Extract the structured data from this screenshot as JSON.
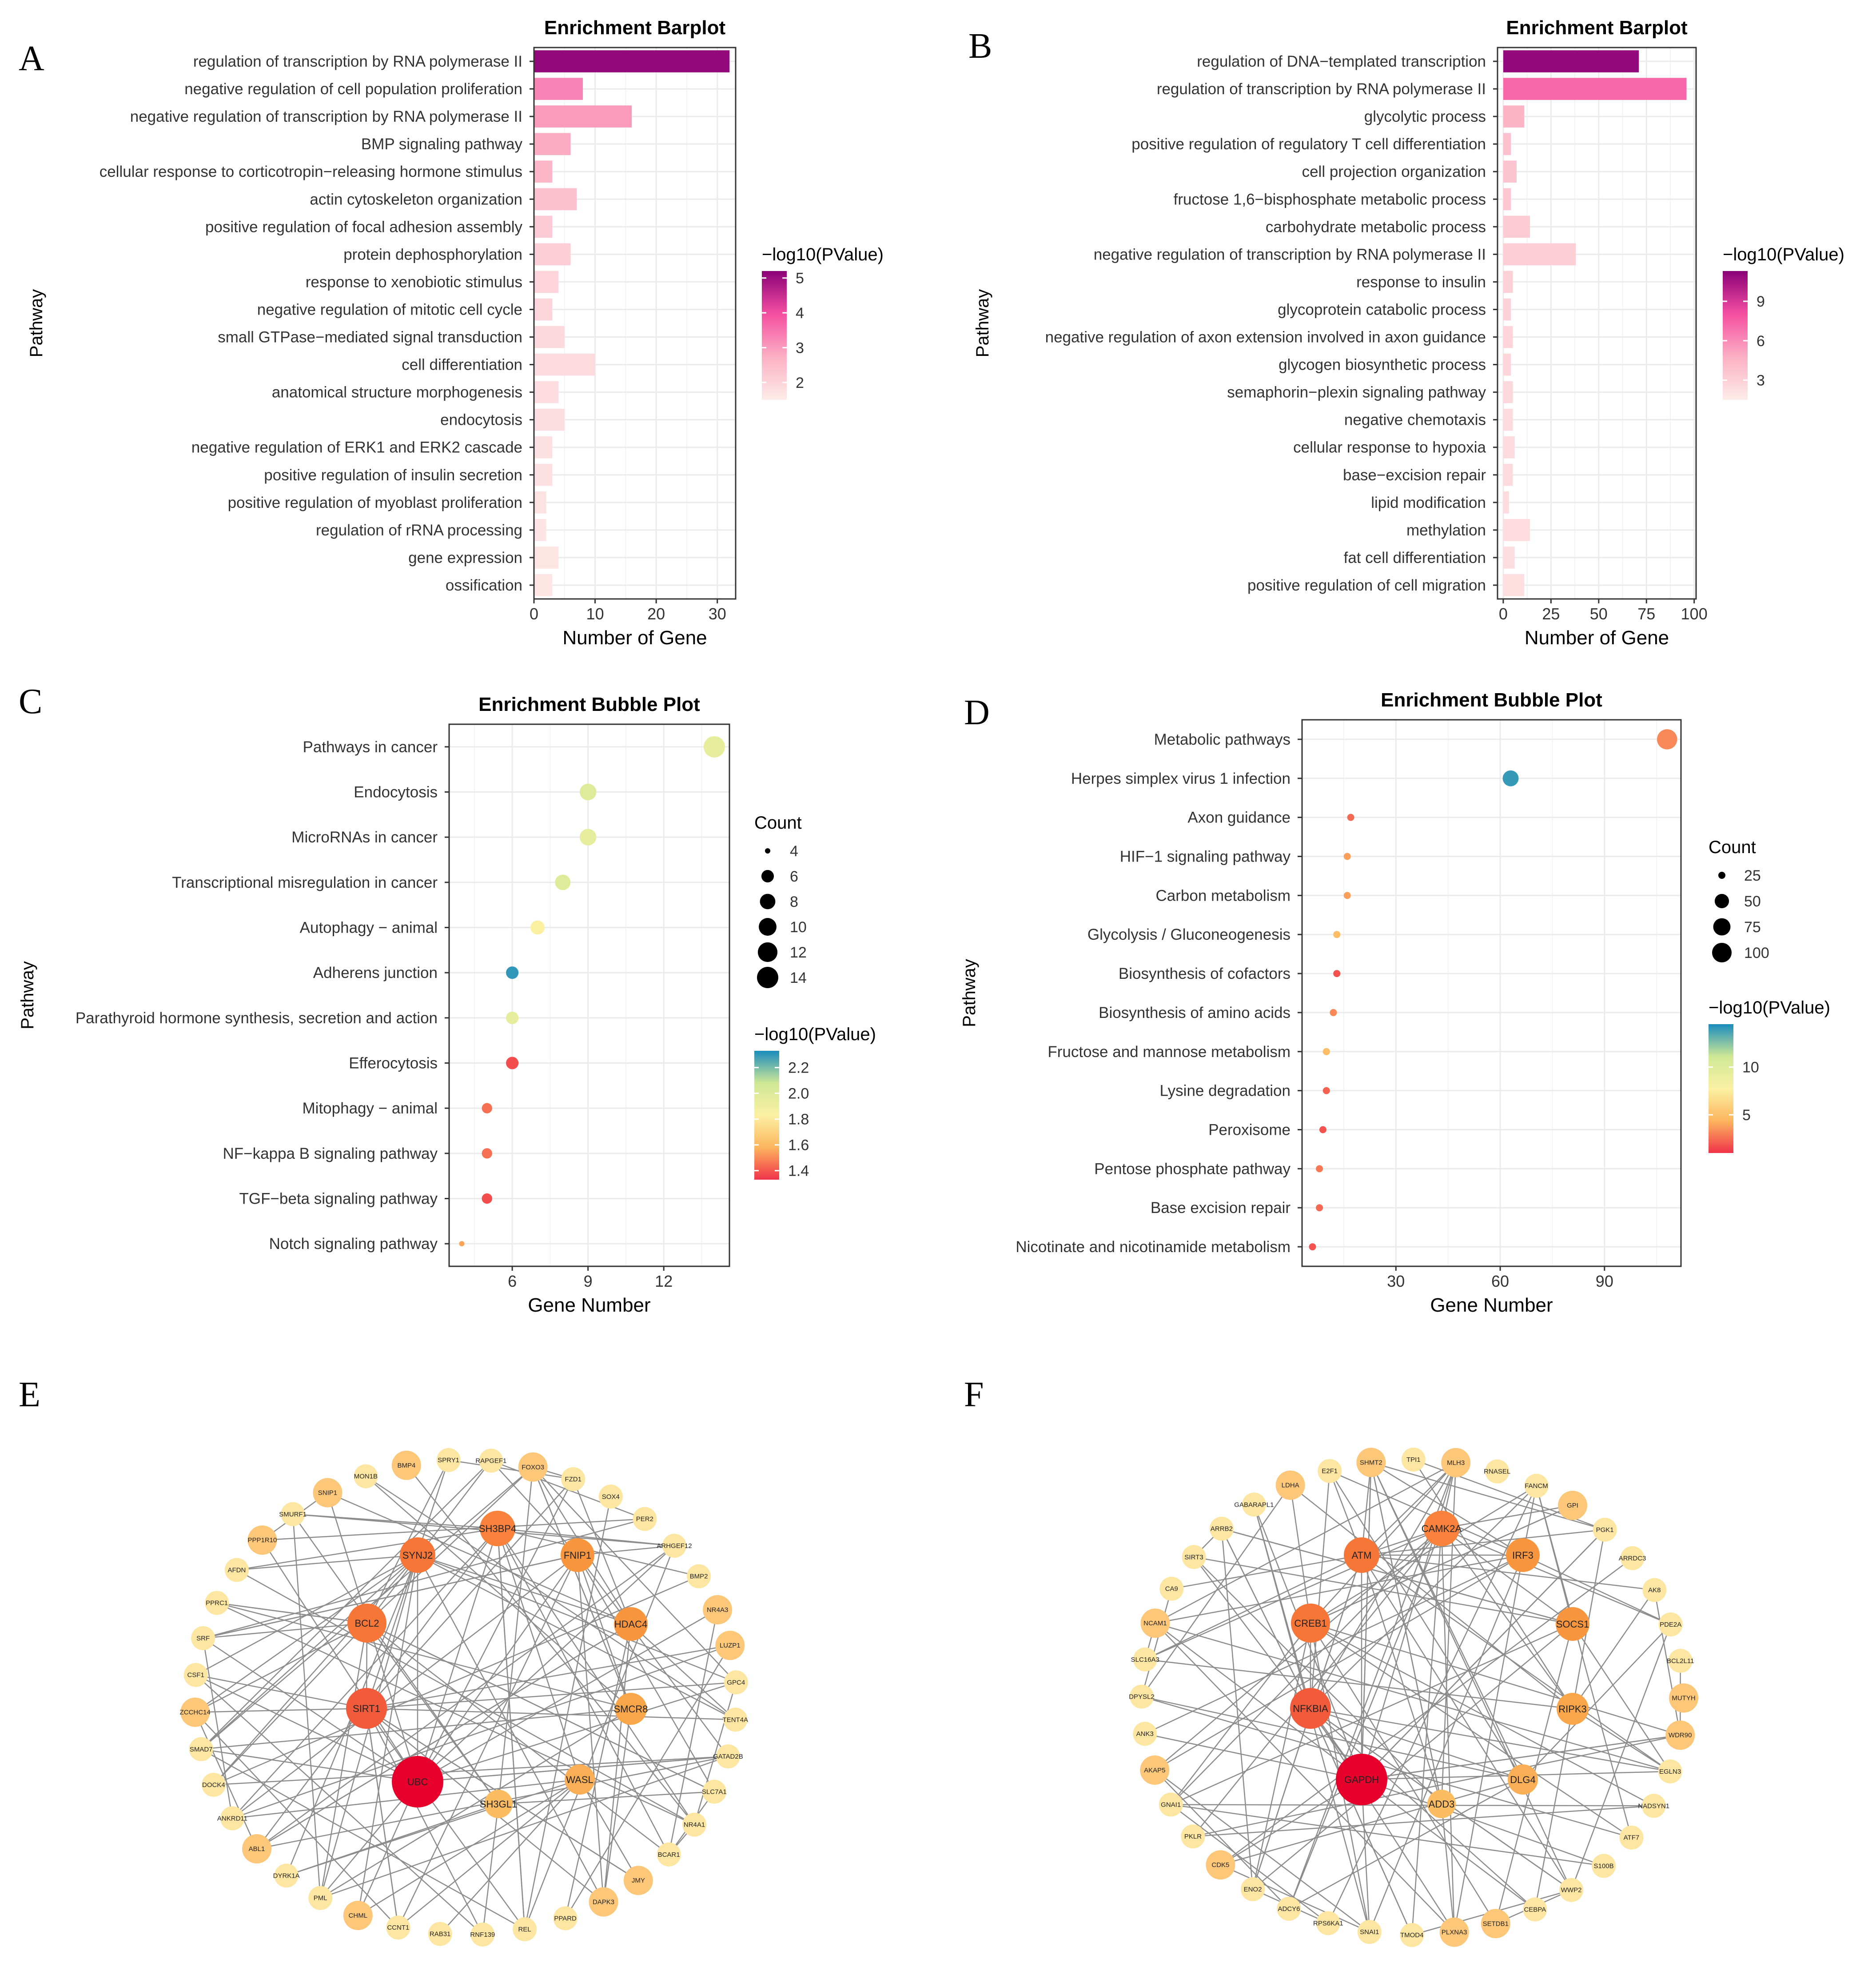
{
  "panels": {
    "A": {
      "letter": "A",
      "chart_data": {
        "type": "bar",
        "orientation": "horizontal",
        "title": "Enrichment Barplot",
        "xlabel": "Number of Gene",
        "ylabel": "Pathway",
        "xlim": [
          0,
          33
        ],
        "xticks": [
          0,
          10,
          20,
          30
        ],
        "colorbar": {
          "title": "−log10(PValue)",
          "range": [
            1.5,
            5.2
          ],
          "ticks": [
            2,
            3,
            4,
            5
          ],
          "colors": [
            "#fdece8",
            "#fbb0c4",
            "#f54fa1",
            "#8a0277"
          ]
        },
        "categories": [
          "regulation of transcription by RNA polymerase II",
          "negative regulation of cell population proliferation",
          "negative regulation of transcription by RNA polymerase II",
          "BMP signaling pathway",
          "cellular response to corticotropin−releasing hormone stimulus",
          "actin cytoskeleton organization",
          "positive regulation of focal adhesion assembly",
          "protein dephosphorylation",
          "response to xenobiotic stimulus",
          "negative regulation of mitotic cell cycle",
          "small GTPase−mediated signal transduction",
          "cell differentiation",
          "anatomical structure morphogenesis",
          "endocytosis",
          "negative regulation of ERK1 and ERK2 cascade",
          "positive regulation of insulin secretion",
          "positive regulation of myoblast proliferation",
          "regulation of rRNA processing",
          "gene expression",
          "ossification"
        ],
        "values": [
          32,
          8,
          16,
          6,
          3,
          7,
          3,
          6,
          4,
          3,
          5,
          10,
          4,
          5,
          3,
          3,
          2,
          2,
          4,
          3
        ],
        "color_values": [
          5.1,
          3.3,
          3.0,
          2.8,
          2.6,
          2.4,
          2.2,
          2.1,
          2.0,
          1.95,
          1.9,
          1.85,
          1.8,
          1.78,
          1.75,
          1.72,
          1.7,
          1.68,
          1.65,
          1.62
        ]
      }
    },
    "B": {
      "letter": "B",
      "chart_data": {
        "type": "bar",
        "orientation": "horizontal",
        "title": "Enrichment Barplot",
        "xlabel": "Number of Gene",
        "ylabel": "Pathway",
        "xlim": [
          -3,
          101
        ],
        "xticks": [
          0,
          25,
          50,
          75,
          100
        ],
        "colorbar": {
          "title": "−log10(PValue)",
          "range": [
            1.5,
            11.3
          ],
          "ticks": [
            3,
            6,
            9
          ],
          "colors": [
            "#fdece8",
            "#fbb0c4",
            "#f54fa1",
            "#8a0277"
          ]
        },
        "categories": [
          "regulation of DNA−templated transcription",
          "regulation of transcription by RNA polymerase II",
          "glycolytic process",
          "positive regulation of regulatory T cell differentiation",
          "cell projection organization",
          "fructose 1,6−bisphosphate metabolic process",
          "carbohydrate metabolic process",
          "negative regulation of transcription by RNA polymerase II",
          "response to insulin",
          "glycoprotein catabolic process",
          "negative regulation of axon extension involved in axon guidance",
          "glycogen biosynthetic process",
          "semaphorin−plexin signaling pathway",
          "negative chemotaxis",
          "cellular response to hypoxia",
          "base−excision repair",
          "lipid modification",
          "methylation",
          "fat cell differentiation",
          "positive regulation of cell migration"
        ],
        "values": [
          71,
          96,
          11,
          4,
          7,
          4,
          14,
          38,
          5,
          4,
          5,
          4,
          5,
          5,
          6,
          5,
          3,
          14,
          6,
          11
        ],
        "color_values": [
          11.0,
          7.2,
          4.5,
          3.9,
          3.7,
          3.5,
          3.3,
          3.1,
          3.0,
          2.9,
          2.8,
          2.7,
          2.6,
          2.5,
          2.45,
          2.4,
          2.35,
          2.3,
          2.25,
          2.2
        ]
      }
    },
    "C": {
      "letter": "C",
      "chart_data": {
        "type": "scatter",
        "title": "Enrichment Bubble Plot",
        "xlabel": "Gene Number",
        "ylabel": "Pathway",
        "xlim": [
          3.5,
          14.6
        ],
        "xticks": [
          6,
          9,
          12
        ],
        "categories": [
          "Pathways in cancer",
          "Endocytosis",
          "MicroRNAs in cancer",
          "Transcriptional misregulation in cancer",
          "Autophagy − animal",
          "Adherens junction",
          "Parathyroid hormone synthesis, secretion and action",
          "Efferocytosis",
          "Mitophagy − animal",
          "NF−kappa B signaling pathway",
          "TGF−beta signaling pathway",
          "Notch signaling pathway"
        ],
        "x": [
          14,
          9,
          9,
          8,
          7,
          6,
          6,
          6,
          5,
          5,
          5,
          4
        ],
        "color_values": [
          1.95,
          2.0,
          1.95,
          2.0,
          1.82,
          2.3,
          1.95,
          1.38,
          1.45,
          1.45,
          1.38,
          1.55
        ],
        "size_legend": {
          "title": "Count",
          "values": [
            4,
            6,
            8,
            10,
            12,
            14
          ]
        },
        "colorbar": {
          "title": "−log10(PValue)",
          "range": [
            1.33,
            2.33
          ],
          "ticks": [
            1.4,
            1.6,
            1.8,
            2.0,
            2.2
          ],
          "tick_labels": [
            "1.4",
            "1.6",
            "1.8",
            "2.0",
            "2.2"
          ],
          "colors": [
            "#f0334a",
            "#fdb55e",
            "#fbf1a3",
            "#cfe896",
            "#1a8cbd"
          ]
        }
      }
    },
    "D": {
      "letter": "D",
      "chart_data": {
        "type": "scatter",
        "title": "Enrichment Bubble Plot",
        "xlabel": "Gene Number",
        "ylabel": "Pathway",
        "xlim": [
          3,
          112
        ],
        "xticks": [
          30,
          60,
          90
        ],
        "categories": [
          "Metabolic pathways",
          "Herpes simplex virus 1 infection",
          "Axon guidance",
          "HIF−1 signaling pathway",
          "Carbon metabolism",
          "Glycolysis / Gluconeogenesis",
          "Biosynthesis of cofactors",
          "Biosynthesis of amino acids",
          "Fructose and mannose metabolism",
          "Lysine degradation",
          "Peroxisome",
          "Pentose phosphate pathway",
          "Base excision repair",
          "Nicotinate and nicotinamide metabolism"
        ],
        "x": [
          108,
          63,
          17,
          16,
          16,
          13,
          13,
          12,
          10,
          10,
          9,
          8,
          8,
          6
        ],
        "color_values": [
          3.2,
          14.0,
          2.4,
          3.8,
          3.8,
          4.8,
          1.8,
          3.2,
          4.8,
          2.2,
          1.8,
          2.8,
          2.4,
          1.8
        ],
        "size_legend": {
          "title": "Count",
          "values": [
            25,
            50,
            75,
            100
          ]
        },
        "colorbar": {
          "title": "−log10(PValue)",
          "range": [
            1,
            14.5
          ],
          "ticks": [
            5,
            10
          ],
          "tick_labels": [
            "5",
            "10"
          ],
          "colors": [
            "#f0334a",
            "#fdb55e",
            "#fbf1a3",
            "#cfe896",
            "#1a8cbd"
          ]
        }
      }
    },
    "E": {
      "letter": "E",
      "network": {
        "hub_nodes": [
          "UBC",
          "SIRT1",
          "BCL2",
          "SYNJ2",
          "SH3BP4",
          "FNIP1",
          "HDAC4",
          "SMCR8",
          "WASL",
          "SH3GL1"
        ],
        "ring_nodes": [
          "BMP4",
          "SPRY1",
          "RAPGEF1",
          "FOXO3",
          "FZD1",
          "SOX4",
          "PER2",
          "ARHGEF12",
          "BMP2",
          "NR4A3",
          "LUZP1",
          "GPC4",
          "TENT4A",
          "GATAD2B",
          "SLC7A1",
          "NR4A1",
          "BCAR1",
          "JMY",
          "DAPK3",
          "PPARD",
          "REL",
          "RNF139",
          "RAB31",
          "CCNT1",
          "CHML",
          "PML",
          "DYRK1A",
          "ABL1",
          "ANKRD11",
          "DOCK4",
          "SMAD7",
          "ZCCHC14",
          "CSF1",
          "SRF",
          "PPRC1",
          "AFDN",
          "PPP1R10",
          "SMURF1",
          "SNIP1",
          "MON1B"
        ]
      }
    },
    "F": {
      "letter": "F",
      "network": {
        "hub_nodes": [
          "GAPDH",
          "NFKBIA",
          "CREB1",
          "ATM",
          "CAMK2A",
          "IRF3",
          "SOCS1",
          "RIPK3",
          "DLG4",
          "ADD3"
        ],
        "ring_nodes": [
          "MLH3",
          "RNASEL",
          "FANCM",
          "GPI",
          "PGK1",
          "ARRDC3",
          "AK8",
          "PDE2A",
          "BCL2L11",
          "MUTYH",
          "WDR90",
          "EGLN3",
          "NADSYN1",
          "ATF7",
          "S100B",
          "WWP2",
          "CEBPA",
          "SETDB1",
          "PLXNA3",
          "TMOD4",
          "SNAI1",
          "RPS6KA1",
          "ADCY6",
          "ENO2",
          "CDK5",
          "PKLR",
          "GNAI1",
          "AKAP5",
          "ANK3",
          "DPYSL2",
          "SLC16A3",
          "NCAM1",
          "CA9",
          "SIRT3",
          "ARRB2",
          "GABARAPL1",
          "LDHA",
          "E2F1",
          "SHMT2",
          "TPI1"
        ]
      }
    },
    "colors": {
      "accent": "#e8002d",
      "edge": "#8c8c8c"
    }
  }
}
